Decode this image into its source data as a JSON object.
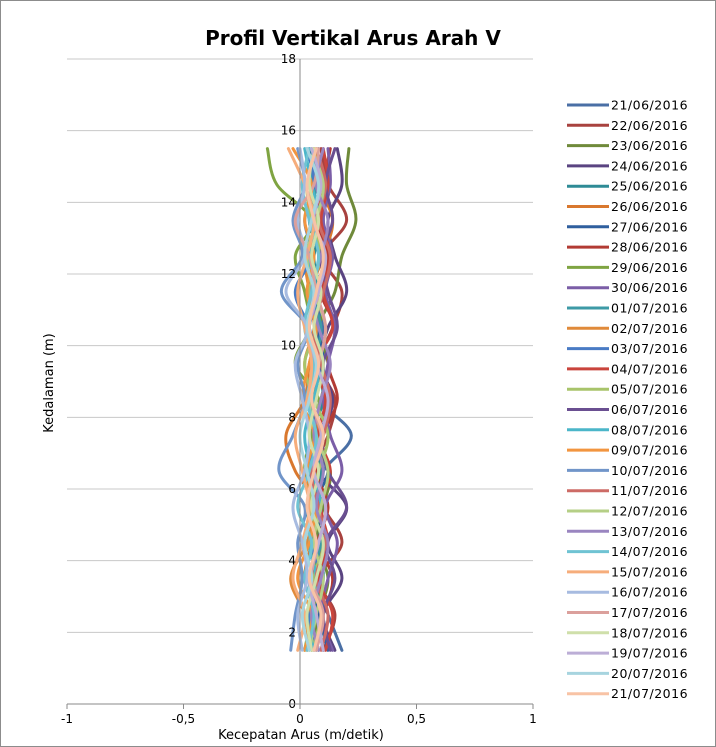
{
  "chart_data": {
    "type": "line",
    "title": "Profil Vertikal Arus Arah V",
    "xlabel": "Kecepatan Arus (m/detik)",
    "ylabel": "Kedalaman (m)",
    "xlim": [
      -1,
      1
    ],
    "ylim": [
      0,
      18
    ],
    "x_ticks": [
      "-1",
      "-0,5",
      "0",
      "0,5",
      "1"
    ],
    "y_ticks": [
      "0",
      "2",
      "4",
      "6",
      "8",
      "10",
      "12",
      "14",
      "16",
      "18"
    ],
    "grid": "horizontal",
    "legend_position": "right",
    "depths": [
      1.5,
      2.5,
      3.5,
      4.5,
      5.5,
      6.5,
      7.5,
      8.5,
      9.5,
      10.5,
      11.5,
      12.5,
      13.5,
      14.5,
      15.5
    ],
    "series": [
      {
        "name": "21/06/2016",
        "color": "#4a6fa5",
        "values": [
          0.18,
          0.12,
          0.06,
          0.09,
          0.05,
          0.1,
          0.22,
          0.08,
          0.05,
          0.1,
          0.06,
          0.12,
          0.08,
          0.05,
          0.08
        ]
      },
      {
        "name": "22/06/2016",
        "color": "#a8423f",
        "values": [
          0.1,
          0.15,
          0.08,
          0.18,
          0.1,
          0.06,
          0.12,
          0.15,
          0.08,
          0.14,
          0.18,
          0.1,
          0.2,
          0.12,
          0.09
        ]
      },
      {
        "name": "23/06/2016",
        "color": "#6f8a3a",
        "values": [
          0.05,
          0.08,
          0.12,
          0.07,
          0.1,
          0.13,
          0.06,
          0.09,
          0.12,
          0.08,
          0.15,
          0.18,
          0.24,
          0.2,
          0.21
        ]
      },
      {
        "name": "24/06/2016",
        "color": "#5a4481",
        "values": [
          0.15,
          0.1,
          0.18,
          0.12,
          0.2,
          0.08,
          0.1,
          0.14,
          0.09,
          0.12,
          0.2,
          0.15,
          0.12,
          0.18,
          0.16
        ]
      },
      {
        "name": "25/06/2016",
        "color": "#2e8b96",
        "values": [
          0.08,
          0.05,
          0.1,
          0.07,
          0.03,
          0.09,
          0.05,
          0.1,
          0.07,
          0.04,
          0.08,
          0.06,
          0.1,
          0.05,
          0.07
        ]
      },
      {
        "name": "26/06/2016",
        "color": "#d9782e",
        "values": [
          0.03,
          0.06,
          0.02,
          0.05,
          0.08,
          -0.02,
          -0.06,
          0.02,
          0.04,
          0.08,
          0.05,
          0.1,
          0.14,
          0.08,
          0.06
        ]
      },
      {
        "name": "27/06/2016",
        "color": "#2f5f9e",
        "values": [
          0.12,
          0.08,
          0.05,
          0.1,
          0.06,
          0.12,
          0.08,
          0.05,
          0.1,
          0.07,
          0.03,
          0.09,
          0.06,
          0.11,
          0.04
        ]
      },
      {
        "name": "28/06/2016",
        "color": "#b23b34",
        "values": [
          0.06,
          0.1,
          0.14,
          0.08,
          0.12,
          0.07,
          0.1,
          0.16,
          0.12,
          0.15,
          0.09,
          0.12,
          0.07,
          0.1,
          0.13
        ]
      },
      {
        "name": "29/06/2016",
        "color": "#7fa442",
        "values": [
          0.02,
          0.05,
          0.08,
          0.04,
          0.07,
          0.02,
          0.05,
          0.08,
          -0.02,
          0.04,
          0.02,
          -0.02,
          0.05,
          -0.1,
          -0.14
        ]
      },
      {
        "name": "30/06/2016",
        "color": "#7b5ea7",
        "values": [
          0.14,
          0.09,
          0.12,
          0.16,
          0.11,
          0.18,
          0.13,
          0.1,
          0.12,
          0.15,
          0.11,
          0.14,
          0.1,
          0.13,
          0.12
        ]
      },
      {
        "name": "01/07/2016",
        "color": "#3d9aa6",
        "values": [
          0.1,
          0.07,
          0.04,
          0.09,
          0.06,
          0.1,
          0.07,
          0.04,
          0.06,
          0.09,
          0.05,
          0.08,
          0.04,
          0.07,
          0.05
        ]
      },
      {
        "name": "02/07/2016",
        "color": "#e08a3a",
        "values": [
          0.04,
          0.02,
          -0.04,
          0.03,
          0.06,
          0.03,
          0.08,
          0.05,
          0.02,
          0.06,
          0.04,
          0.02,
          0.05,
          0.09,
          0.06
        ]
      },
      {
        "name": "03/07/2016",
        "color": "#4a7bc4",
        "values": [
          0.07,
          0.04,
          0.09,
          0.05,
          0.08,
          0.04,
          0.07,
          0.03,
          0.06,
          0.04,
          -0.02,
          0.05,
          0.02,
          0.06,
          0.03
        ]
      },
      {
        "name": "04/07/2016",
        "color": "#c9443c",
        "values": [
          0.11,
          0.14,
          0.08,
          0.12,
          0.09,
          0.13,
          0.08,
          0.11,
          0.07,
          0.14,
          0.1,
          0.13,
          0.09,
          0.12,
          0.1
        ]
      },
      {
        "name": "05/07/2016",
        "color": "#a8c46a",
        "values": [
          0.05,
          0.09,
          0.06,
          0.1,
          0.04,
          0.08,
          0.12,
          0.06,
          0.02,
          0.07,
          0.04,
          0.09,
          0.05,
          0.03,
          0.07
        ]
      },
      {
        "name": "06/07/2016",
        "color": "#6a4f91",
        "values": [
          0.13,
          0.1,
          0.15,
          0.11,
          0.2,
          0.12,
          0.09,
          0.13,
          0.1,
          0.16,
          0.12,
          0.09,
          0.14,
          0.11,
          0.15
        ]
      },
      {
        "name": "08/07/2016",
        "color": "#4bb6c9",
        "values": [
          0.06,
          0.03,
          0.07,
          0.04,
          0.09,
          0.05,
          0.02,
          0.06,
          0.08,
          0.03,
          0.07,
          0.04,
          0.08,
          0.05,
          0.02
        ]
      },
      {
        "name": "09/07/2016",
        "color": "#f2953f",
        "values": [
          0.02,
          0.05,
          -0.01,
          0.04,
          0.07,
          0.03,
          0.06,
          0.01,
          0.04,
          0.07,
          0.03,
          0.06,
          0.02,
          0.05,
          -0.03
        ]
      },
      {
        "name": "10/07/2016",
        "color": "#7195c9",
        "values": [
          -0.04,
          -0.02,
          0.01,
          -0.01,
          0.02,
          -0.09,
          -0.03,
          0.02,
          -0.01,
          0.03,
          -0.08,
          0.01,
          -0.03,
          0.02,
          -0.01
        ]
      },
      {
        "name": "11/07/2016",
        "color": "#cd6b66",
        "values": [
          0.09,
          0.12,
          0.07,
          0.11,
          0.08,
          0.05,
          0.1,
          0.13,
          0.09,
          0.06,
          0.1,
          0.13,
          0.08,
          0.11,
          0.07
        ]
      },
      {
        "name": "12/07/2016",
        "color": "#b5cf86",
        "values": [
          0.04,
          0.07,
          0.1,
          0.06,
          0.09,
          0.12,
          0.07,
          0.04,
          0.08,
          0.11,
          0.06,
          0.03,
          0.07,
          0.1,
          0.05
        ]
      },
      {
        "name": "13/07/2016",
        "color": "#9a85c0",
        "values": [
          0.08,
          0.05,
          0.09,
          0.12,
          0.07,
          0.1,
          0.06,
          0.09,
          0.13,
          0.08,
          0.05,
          0.09,
          0.12,
          0.07,
          0.1
        ]
      },
      {
        "name": "14/07/2016",
        "color": "#6fc3d3",
        "values": [
          0.03,
          0.06,
          0.02,
          0.05,
          -0.01,
          0.04,
          0.07,
          0.03,
          0.06,
          0.02,
          0.05,
          0.08,
          0.04,
          0.01,
          0.04
        ]
      },
      {
        "name": "15/07/2016",
        "color": "#f6ad7b",
        "values": [
          -0.01,
          0.02,
          -0.03,
          0.01,
          0.04,
          0.01,
          -0.02,
          0.03,
          0.05,
          0.02,
          -0.01,
          0.03,
          0.06,
          0.02,
          -0.05
        ]
      },
      {
        "name": "16/07/2016",
        "color": "#a7bbe0",
        "values": [
          0.01,
          -0.01,
          0.03,
          0.01,
          -0.03,
          0.02,
          0.04,
          0.01,
          -0.02,
          0.03,
          -0.06,
          0.02,
          -0.01,
          0.02,
          0.0
        ]
      },
      {
        "name": "17/07/2016",
        "color": "#dba09c",
        "values": [
          0.07,
          0.1,
          0.05,
          0.08,
          0.11,
          0.06,
          0.09,
          0.05,
          0.08,
          0.11,
          0.07,
          0.04,
          -0.02,
          0.06,
          0.08
        ]
      },
      {
        "name": "18/07/2016",
        "color": "#cfdfaa",
        "values": [
          0.05,
          0.03,
          0.07,
          0.1,
          0.05,
          0.08,
          0.04,
          0.07,
          0.1,
          0.06,
          0.09,
          0.05,
          0.08,
          0.04,
          0.06
        ]
      },
      {
        "name": "19/07/2016",
        "color": "#bcaed6",
        "values": [
          0.1,
          0.07,
          0.04,
          0.08,
          0.11,
          0.06,
          0.09,
          0.12,
          0.07,
          0.04,
          0.08,
          0.11,
          0.06,
          0.09,
          0.05
        ]
      },
      {
        "name": "20/07/2016",
        "color": "#a7d4df",
        "values": [
          0.04,
          0.01,
          0.05,
          0.02,
          0.06,
          0.03,
          0.0,
          0.04,
          0.07,
          0.03,
          0.06,
          0.02,
          0.05,
          0.08,
          0.03
        ]
      },
      {
        "name": "21/07/2016",
        "color": "#f8c3a5",
        "values": [
          0.06,
          0.09,
          0.04,
          0.07,
          0.03,
          0.06,
          0.1,
          0.05,
          0.08,
          0.04,
          0.07,
          0.1,
          0.06,
          0.03,
          0.07
        ]
      }
    ]
  }
}
